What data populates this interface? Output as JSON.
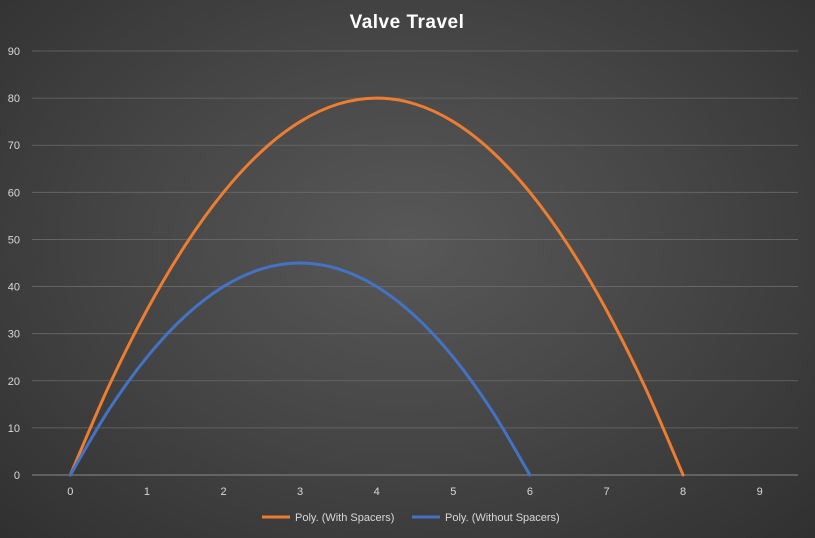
{
  "chart_data": {
    "type": "line",
    "title": "Valve Travel",
    "xlabel": "",
    "ylabel": "",
    "xlim": [
      -0.5,
      9.5
    ],
    "ylim": [
      0,
      90
    ],
    "x_ticks": [
      0,
      1,
      2,
      3,
      4,
      5,
      6,
      7,
      8,
      9
    ],
    "y_ticks": [
      0,
      10,
      20,
      30,
      40,
      50,
      60,
      70,
      80,
      90
    ],
    "grid": true,
    "legend_position": "bottom",
    "series": [
      {
        "name": "Poly. (With Spacers)",
        "color": "#ed7d31",
        "x": [
          0,
          0.5,
          1,
          1.5,
          2,
          2.5,
          3,
          3.5,
          4,
          4.5,
          5,
          5.5,
          6,
          6.5,
          7,
          7.5,
          8
        ],
        "values": [
          0,
          18.75,
          35,
          48.75,
          60,
          68.75,
          75,
          78.75,
          80,
          78.75,
          75,
          68.75,
          60,
          48.75,
          35,
          18.75,
          0
        ]
      },
      {
        "name": "Poly. (Without Spacers)",
        "color": "#4472c4",
        "x": [
          0,
          0.5,
          1,
          1.5,
          2,
          2.5,
          3,
          3.5,
          4,
          4.5,
          5,
          5.5,
          6
        ],
        "values": [
          0,
          13.75,
          25,
          33.75,
          40,
          43.75,
          45,
          43.75,
          40,
          33.75,
          25,
          13.75,
          0
        ]
      }
    ]
  }
}
